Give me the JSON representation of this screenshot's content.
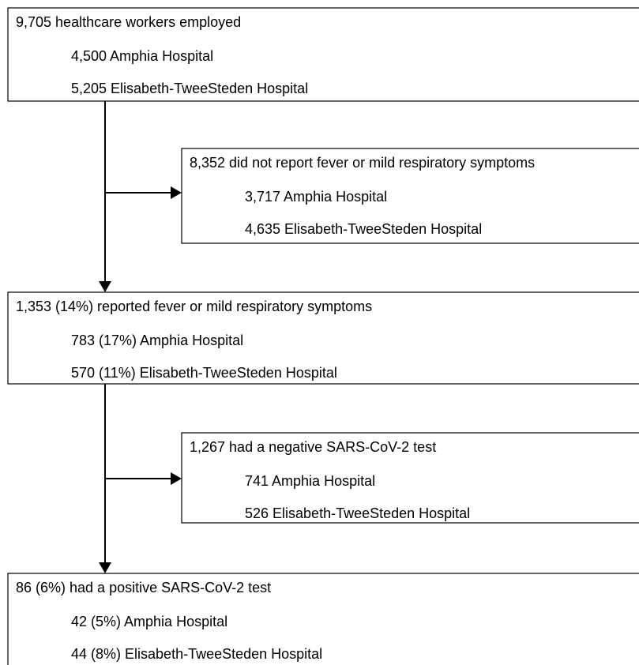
{
  "boxes": [
    {
      "title": "9,705 healthcare workers employed",
      "items": [
        "4,500 Amphia Hospital",
        "5,205 Elisabeth-TweeSteden Hospital"
      ]
    },
    {
      "title": "8,352 did not report fever or mild respiratory symptoms",
      "items": [
        "3,717 Amphia Hospital",
        "4,635 Elisabeth-TweeSteden Hospital"
      ]
    },
    {
      "title": "1,353 (14%) reported fever or mild respiratory symptoms",
      "items": [
        "783 (17%) Amphia Hospital",
        "570 (11%) Elisabeth-TweeSteden Hospital"
      ]
    },
    {
      "title": "1,267 had a negative SARS-CoV-2 test",
      "items": [
        "741 Amphia Hospital",
        "526 Elisabeth-TweeSteden Hospital"
      ]
    },
    {
      "title": "86 (6%) had a positive SARS-CoV-2 test",
      "items": [
        "42 (5%) Amphia Hospital",
        "44 (8%) Elisabeth-TweeSteden Hospital"
      ]
    }
  ]
}
